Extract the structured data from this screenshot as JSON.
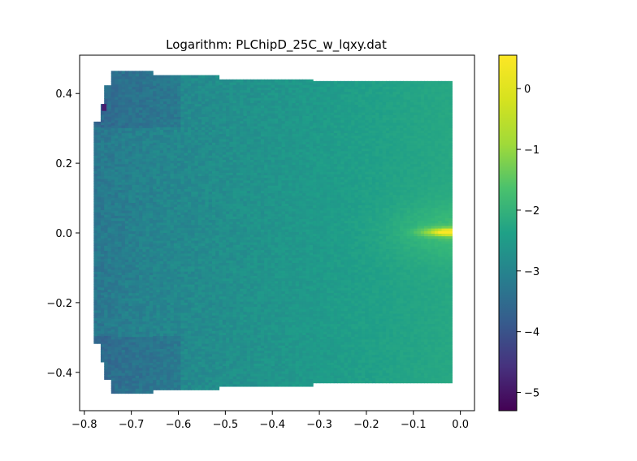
{
  "chart_data": {
    "type": "heatmap",
    "title": "Logarithm: PLChipD_25C_w_lqxy.dat",
    "xlabel": "",
    "ylabel": "",
    "xlim": [
      -0.81,
      0.03
    ],
    "ylim": [
      -0.51,
      0.51
    ],
    "x_ticks": [
      -0.8,
      -0.7,
      -0.6,
      -0.5,
      -0.4,
      -0.3,
      -0.2,
      -0.1,
      0.0
    ],
    "x_tick_labels": [
      "−0.8",
      "−0.7",
      "−0.6",
      "−0.5",
      "−0.4",
      "−0.3",
      "−0.2",
      "−0.1",
      "0.0"
    ],
    "y_ticks": [
      -0.4,
      -0.2,
      0.0,
      0.2,
      0.4
    ],
    "y_tick_labels": [
      "−0.4",
      "−0.2",
      "0.0",
      "0.2",
      "0.4"
    ],
    "colorbar": {
      "colormap": "viridis",
      "vmin": -5.3,
      "vmax": 0.55,
      "ticks": [
        0,
        -1,
        -2,
        -3,
        -4,
        -5
      ],
      "tick_labels": [
        "0",
        "−1",
        "−2",
        "−3",
        "−4",
        "−5"
      ]
    },
    "data_region": {
      "x_range": [
        -0.78,
        -0.02
      ],
      "y_extent_profile": [
        {
          "x_from": -0.78,
          "x_to": -0.77,
          "y_min": -0.317,
          "y_max": 0.317
        },
        {
          "x_from": -0.77,
          "x_to": -0.76,
          "y_min": -0.37,
          "y_max": 0.37
        },
        {
          "x_from": -0.76,
          "x_to": -0.75,
          "y_min": -0.42,
          "y_max": 0.42
        },
        {
          "x_from": -0.75,
          "x_to": -0.66,
          "y_min": -0.46,
          "y_max": 0.46
        },
        {
          "x_from": -0.66,
          "x_to": -0.52,
          "y_min": -0.45,
          "y_max": 0.45
        },
        {
          "x_from": -0.52,
          "x_to": -0.32,
          "y_min": -0.44,
          "y_max": 0.44
        },
        {
          "x_from": -0.32,
          "x_to": -0.02,
          "y_min": -0.43,
          "y_max": 0.43
        }
      ],
      "value_at_left_edge": -3.0,
      "value_at_right_edge": -1.8,
      "peak": {
        "x": -0.02,
        "y": 0.0,
        "value": 0.5
      }
    },
    "grid": false,
    "legend": "colorbar right"
  }
}
